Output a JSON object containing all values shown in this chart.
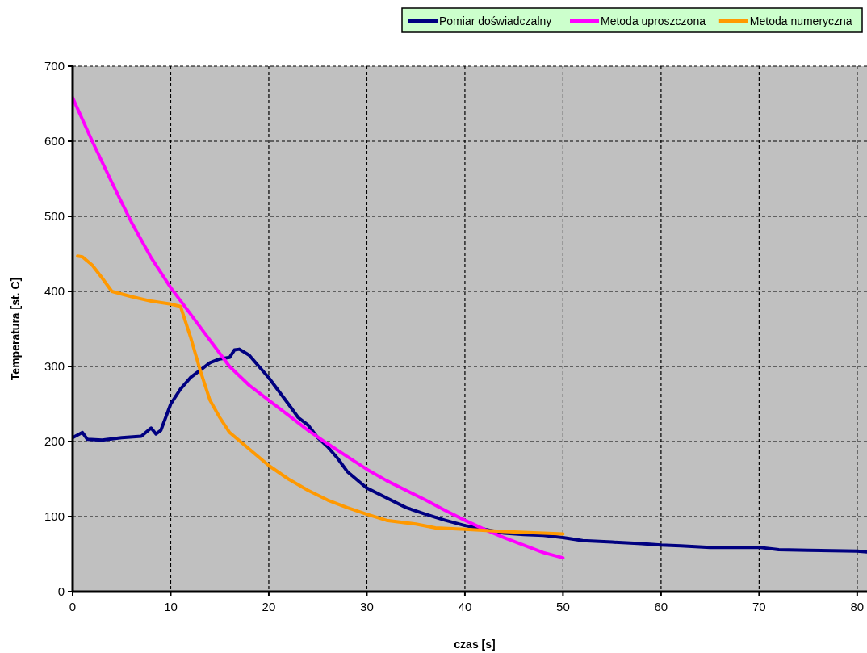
{
  "chart_data": {
    "type": "line",
    "xlabel": "czas [s]",
    "ylabel": "Temperatura [st. C]",
    "xlim": [
      0,
      81
    ],
    "xticks": [
      0,
      10,
      20,
      30,
      40,
      50,
      60,
      70,
      80
    ],
    "ylim": [
      0,
      700
    ],
    "yticks": [
      0,
      100,
      200,
      300,
      400,
      500,
      600,
      700
    ],
    "grid": true,
    "legend": "top right",
    "marker": "none",
    "line_style": "solid",
    "series": [
      {
        "name": "Pomiar doświadczalny",
        "color": "#000080",
        "x": [
          0,
          1,
          1.5,
          3,
          5,
          7,
          8,
          8.5,
          9,
          10,
          11,
          12,
          13,
          14,
          15,
          16,
          16.5,
          17,
          18,
          19,
          20,
          22,
          23,
          24,
          25,
          26,
          27,
          28,
          30,
          32,
          34,
          36,
          38,
          40,
          42,
          44,
          46,
          48,
          50,
          52,
          55,
          58,
          60,
          62,
          65,
          70,
          72,
          75,
          80,
          81
        ],
        "values": [
          205,
          212,
          203,
          202,
          205,
          207,
          218,
          210,
          215,
          250,
          270,
          285,
          295,
          305,
          310,
          312,
          322,
          323,
          315,
          300,
          285,
          250,
          232,
          222,
          205,
          193,
          178,
          160,
          138,
          125,
          112,
          103,
          95,
          88,
          83,
          78,
          76,
          75,
          72,
          68,
          66,
          64,
          62,
          61,
          59,
          59,
          56,
          55,
          54,
          53
        ]
      },
      {
        "name": "Metoda uproszczona",
        "color": "#ff00ff",
        "x": [
          0,
          2,
          4,
          6,
          8,
          10,
          12,
          14,
          16,
          18,
          20,
          22,
          24,
          26,
          28,
          30,
          32,
          34,
          36,
          38,
          40,
          42,
          44,
          46,
          48,
          50
        ],
        "values": [
          658,
          600,
          545,
          492,
          445,
          405,
          370,
          335,
          300,
          275,
          255,
          235,
          215,
          197,
          180,
          163,
          148,
          135,
          122,
          108,
          95,
          83,
          72,
          62,
          52,
          45
        ]
      },
      {
        "name": "Metoda numeryczna",
        "color": "#ff9900",
        "x": [
          0.5,
          1,
          2,
          3,
          4,
          6,
          8,
          10,
          11,
          12,
          13,
          14,
          15,
          16,
          18,
          20,
          22,
          24,
          26,
          28,
          30,
          32,
          35,
          37,
          40,
          44,
          48,
          50
        ],
        "values": [
          447,
          446,
          435,
          418,
          400,
          393,
          387,
          383,
          380,
          340,
          295,
          255,
          232,
          212,
          190,
          168,
          150,
          135,
          122,
          112,
          103,
          95,
          90,
          85,
          83,
          80,
          78,
          77
        ]
      }
    ]
  }
}
